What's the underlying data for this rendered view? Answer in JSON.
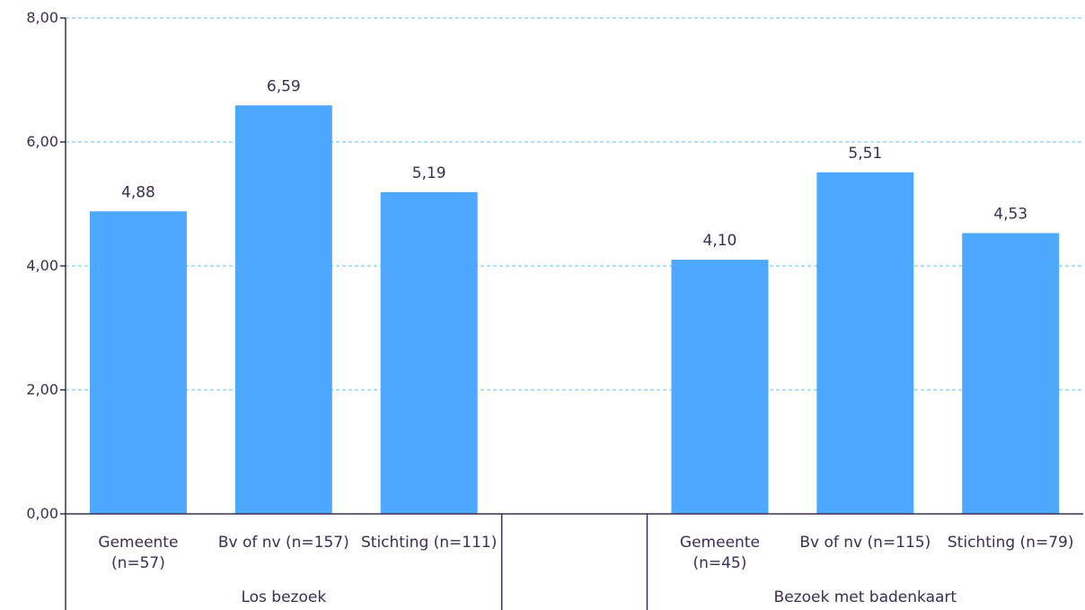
{
  "chart_data": {
    "type": "bar",
    "ylim": [
      0,
      8
    ],
    "yticks": [
      {
        "value": 0,
        "label": "0,00"
      },
      {
        "value": 2,
        "label": "2,00"
      },
      {
        "value": 4,
        "label": "4,00"
      },
      {
        "value": 6,
        "label": "6,00"
      },
      {
        "value": 8,
        "label": "8,00"
      }
    ],
    "grid": true,
    "groups": [
      {
        "label": "Los bezoek",
        "bars": [
          {
            "category": [
              "Gemeente",
              "(n=57)"
            ],
            "value": 4.88,
            "label": "4,88"
          },
          {
            "category": [
              "Bv of nv (n=157)"
            ],
            "value": 6.59,
            "label": "6,59"
          },
          {
            "category": [
              "Stichting (n=111)"
            ],
            "value": 5.19,
            "label": "5,19"
          }
        ]
      },
      {
        "label": "Bezoek met badenkaart",
        "bars": [
          {
            "category": [
              "Gemeente",
              "(n=45)"
            ],
            "value": 4.1,
            "label": "4,10"
          },
          {
            "category": [
              "Bv of nv (n=115)"
            ],
            "value": 5.51,
            "label": "5,51"
          },
          {
            "category": [
              "Stichting (n=79)"
            ],
            "value": 4.53,
            "label": "4,53"
          }
        ]
      }
    ],
    "colors": {
      "bar": "#4ea8ff",
      "grid": "#5bc0eb",
      "axis": "#3a2e54"
    }
  }
}
